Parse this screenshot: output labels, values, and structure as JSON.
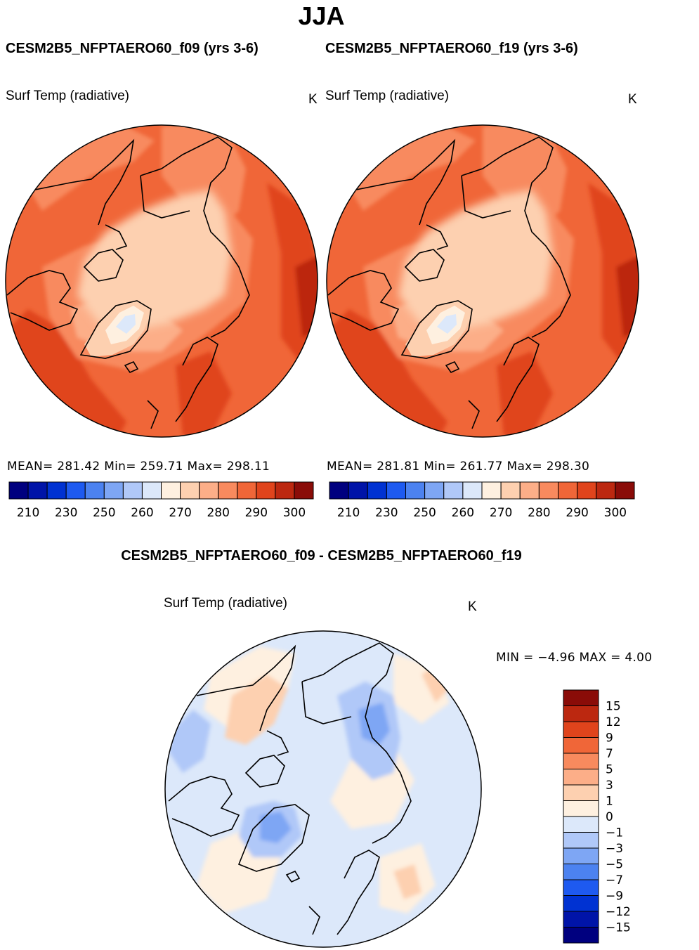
{
  "main_title": "JJA",
  "diff_title": "CESM2B5_NFPTAERO60_f09 - CESM2B5_NFPTAERO60_f19",
  "panels": [
    {
      "title": "CESM2B5_NFPTAERO60_f09 (yrs 3-6)",
      "var_label": "Surf Temp (radiative)",
      "unit": "K",
      "stats": "MEAN=  281.42   Min=  259.71   Max=  298.11"
    },
    {
      "title": "CESM2B5_NFPTAERO60_f19 (yrs 3-6)",
      "var_label": "Surf Temp (radiative)",
      "unit": "K",
      "stats": "MEAN=  281.81   Min=  261.77   Max=  298.30"
    },
    {
      "var_label": "Surf Temp (radiative)",
      "unit": "K",
      "stats": "MIN  =    −4.96  MAX  =      4.00"
    }
  ],
  "chart_data": [
    {
      "type": "heatmap",
      "projection": "north-polar-stereographic",
      "title": "CESM2B5_NFPTAERO60_f09 (yrs 3-6)",
      "variable": "Surf Temp (radiative)",
      "units": "K",
      "mean": 281.42,
      "min": 259.71,
      "max": 298.11,
      "colorbar_ticks": [
        "210",
        "230",
        "250",
        "260",
        "270",
        "280",
        "290",
        "300"
      ],
      "colorbar_colors": [
        "#00007f",
        "#0014a8",
        "#0032d2",
        "#1e5af0",
        "#4c82f0",
        "#7ea6f4",
        "#b0c8f8",
        "#dce8fa",
        "#fef0e0",
        "#fdd0b0",
        "#fcae88",
        "#f88a5e",
        "#f06638",
        "#e0441c",
        "#bc2810",
        "#8a0c08"
      ]
    },
    {
      "type": "heatmap",
      "projection": "north-polar-stereographic",
      "title": "CESM2B5_NFPTAERO60_f19 (yrs 3-6)",
      "variable": "Surf Temp (radiative)",
      "units": "K",
      "mean": 281.81,
      "min": 261.77,
      "max": 298.3,
      "colorbar_ticks": [
        "210",
        "230",
        "250",
        "260",
        "270",
        "280",
        "290",
        "300"
      ],
      "colorbar_colors": [
        "#00007f",
        "#0014a8",
        "#0032d2",
        "#1e5af0",
        "#4c82f0",
        "#7ea6f4",
        "#b0c8f8",
        "#dce8fa",
        "#fef0e0",
        "#fdd0b0",
        "#fcae88",
        "#f88a5e",
        "#f06638",
        "#e0441c",
        "#bc2810",
        "#8a0c08"
      ]
    },
    {
      "type": "heatmap",
      "projection": "north-polar-stereographic",
      "title": "CESM2B5_NFPTAERO60_f09 - CESM2B5_NFPTAERO60_f19",
      "variable": "Surf Temp (radiative)",
      "units": "K",
      "min": -4.96,
      "max": 4.0,
      "colorbar_ticks": [
        "15",
        "12",
        "9",
        "7",
        "5",
        "3",
        "1",
        "0",
        "−1",
        "−3",
        "−5",
        "−7",
        "−9",
        "−12",
        "−15"
      ],
      "colorbar_colors": [
        "#8a0c08",
        "#bc2810",
        "#e0441c",
        "#f06638",
        "#f88a5e",
        "#fcae88",
        "#fdd0b0",
        "#fef0e0",
        "#dce8fa",
        "#b0c8f8",
        "#7ea6f4",
        "#4c82f0",
        "#1e5af0",
        "#0032d2",
        "#0014a8",
        "#00007f"
      ]
    }
  ]
}
